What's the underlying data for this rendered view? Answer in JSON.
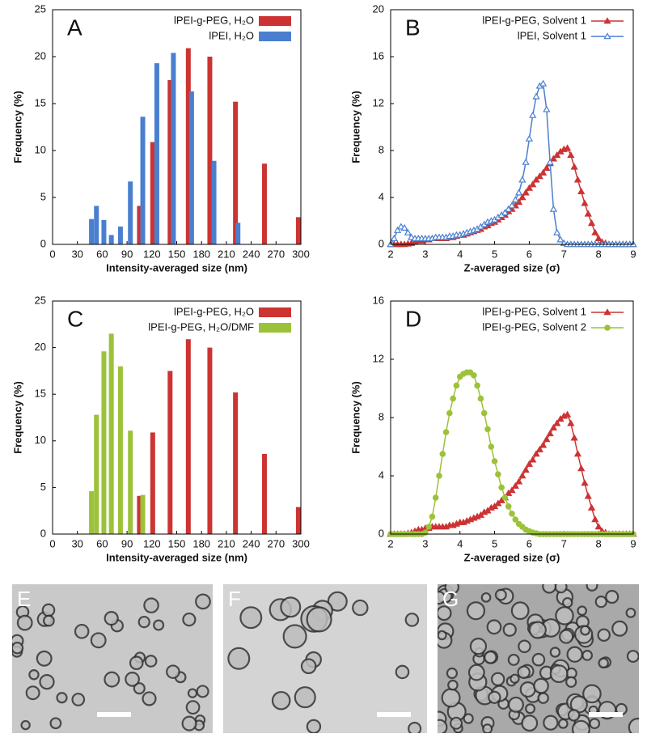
{
  "chart_data": [
    {
      "type": "bar",
      "panel": "A",
      "xlabel": "Intensity-averaged size (nm)",
      "ylabel": "Frequency (%)",
      "xlim": [
        0,
        300
      ],
      "xticks": [
        0,
        30,
        60,
        90,
        120,
        150,
        180,
        210,
        240,
        270,
        300
      ],
      "ylim": [
        0,
        25
      ],
      "yticks": [
        0,
        5,
        10,
        15,
        20,
        25
      ],
      "legend": "upper right",
      "series": [
        {
          "name": "lPEI-g-PEG, H₂O",
          "color": "#cc3333",
          "x": [
            105,
            121,
            142,
            164,
            190,
            221,
            256,
            297
          ],
          "values": [
            4.1,
            10.9,
            17.5,
            20.9,
            20.0,
            15.2,
            8.6,
            2.9
          ]
        },
        {
          "name": "lPEI, H₂O",
          "color": "#4a7fd0",
          "x": [
            47,
            53,
            62,
            71,
            82,
            94,
            109,
            126,
            146,
            168,
            195,
            224
          ],
          "values": [
            2.7,
            4.1,
            2.6,
            1.0,
            1.9,
            6.7,
            13.6,
            19.3,
            20.4,
            16.3,
            8.9,
            2.3
          ]
        }
      ]
    },
    {
      "type": "line",
      "panel": "B",
      "xlabel": "Z-averaged size (σ)",
      "ylabel": "Frequency (%)",
      "xlim": [
        2,
        9
      ],
      "xticks": [
        2,
        3,
        4,
        5,
        6,
        7,
        8,
        9
      ],
      "ylim": [
        0,
        20
      ],
      "yticks": [
        0,
        4,
        8,
        12,
        16,
        20
      ],
      "legend": "upper right",
      "x": [
        2,
        2.1,
        2.2,
        2.3,
        2.4,
        2.5,
        2.6,
        2.7,
        2.8,
        2.9,
        3,
        3.1,
        3.2,
        3.3,
        3.4,
        3.5,
        3.6,
        3.7,
        3.8,
        3.9,
        4,
        4.1,
        4.2,
        4.3,
        4.4,
        4.5,
        4.6,
        4.7,
        4.8,
        4.9,
        5,
        5.1,
        5.2,
        5.3,
        5.4,
        5.5,
        5.6,
        5.7,
        5.8,
        5.9,
        6,
        6.1,
        6.2,
        6.3,
        6.4,
        6.5,
        6.6,
        6.7,
        6.8,
        6.9,
        7,
        7.1,
        7.2,
        7.3,
        7.4,
        7.5,
        7.6,
        7.7,
        7.8,
        7.9,
        8,
        8.1,
        8.2,
        8.3,
        8.4,
        8.5,
        8.6,
        8.7,
        8.8,
        8.9,
        9
      ],
      "series": [
        {
          "name": "lPEI-g-PEG, Solvent 1",
          "color": "#cc3333",
          "marker": "filled-triangle",
          "values": [
            0,
            0,
            0,
            0,
            0,
            0.05,
            0.1,
            0.2,
            0.3,
            0.3,
            0.4,
            0.4,
            0.5,
            0.5,
            0.5,
            0.5,
            0.5,
            0.6,
            0.6,
            0.7,
            0.8,
            0.8,
            0.9,
            1.0,
            1.1,
            1.2,
            1.3,
            1.5,
            1.6,
            1.8,
            1.9,
            2.1,
            2.3,
            2.5,
            2.8,
            3.0,
            3.3,
            3.6,
            4.0,
            4.4,
            4.8,
            5.1,
            5.5,
            5.8,
            6.1,
            6.5,
            6.9,
            7.3,
            7.6,
            7.9,
            8.1,
            8.2,
            7.6,
            6.6,
            5.5,
            4.5,
            3.5,
            2.6,
            1.8,
            1.0,
            0.5,
            0.2,
            0.1,
            0,
            0,
            0,
            0,
            0,
            0,
            0,
            0
          ]
        },
        {
          "name": "lPEI, Solvent 1",
          "color": "#4a7fd0",
          "marker": "open-triangle",
          "values": [
            0,
            0.5,
            1.2,
            1.5,
            1.4,
            1.0,
            0.6,
            0.5,
            0.5,
            0.5,
            0.5,
            0.5,
            0.5,
            0.6,
            0.6,
            0.6,
            0.6,
            0.7,
            0.7,
            0.8,
            0.8,
            0.9,
            1.0,
            1.1,
            1.2,
            1.3,
            1.5,
            1.7,
            1.9,
            2.0,
            2.1,
            2.3,
            2.5,
            2.7,
            3.0,
            3.3,
            3.8,
            4.4,
            5.5,
            7.0,
            9.0,
            11.0,
            12.6,
            13.5,
            13.7,
            11.5,
            7.0,
            3.0,
            1.0,
            0.4,
            0.1,
            0,
            0,
            0,
            0,
            0,
            0,
            0,
            0,
            0,
            0,
            0,
            0,
            0,
            0,
            0,
            0,
            0,
            0,
            0,
            0
          ]
        }
      ]
    },
    {
      "type": "bar",
      "panel": "C",
      "xlabel": "Intensity-averaged size (nm)",
      "ylabel": "Frequency (%)",
      "xlim": [
        0,
        300
      ],
      "xticks": [
        0,
        30,
        60,
        90,
        120,
        150,
        180,
        210,
        240,
        270,
        300
      ],
      "ylim": [
        0,
        25
      ],
      "yticks": [
        0,
        5,
        10,
        15,
        20,
        25
      ],
      "legend": "upper right",
      "series": [
        {
          "name": "lPEI-g-PEG, H₂O",
          "color": "#cc3333",
          "x": [
            105,
            121,
            142,
            164,
            190,
            221,
            256,
            297
          ],
          "values": [
            4.1,
            10.9,
            17.5,
            20.9,
            20.0,
            15.2,
            8.6,
            2.9
          ]
        },
        {
          "name": "lPEI-g-PEG, H₂O/DMF",
          "color": "#9cc23a",
          "x": [
            47,
            53,
            62,
            71,
            82,
            94,
            109
          ],
          "values": [
            4.6,
            12.8,
            19.6,
            21.5,
            18.0,
            11.1,
            4.2
          ]
        }
      ]
    },
    {
      "type": "line",
      "panel": "D",
      "xlabel": "Z-averaged size (σ)",
      "ylabel": "Frequency (%)",
      "xlim": [
        2,
        9
      ],
      "xticks": [
        2,
        3,
        4,
        5,
        6,
        7,
        8,
        9
      ],
      "ylim": [
        0,
        16
      ],
      "yticks": [
        0,
        4,
        8,
        12,
        16
      ],
      "legend": "upper right",
      "x": [
        2,
        2.1,
        2.2,
        2.3,
        2.4,
        2.5,
        2.6,
        2.7,
        2.8,
        2.9,
        3,
        3.1,
        3.2,
        3.3,
        3.4,
        3.5,
        3.6,
        3.7,
        3.8,
        3.9,
        4,
        4.1,
        4.2,
        4.3,
        4.4,
        4.5,
        4.6,
        4.7,
        4.8,
        4.9,
        5,
        5.1,
        5.2,
        5.3,
        5.4,
        5.5,
        5.6,
        5.7,
        5.8,
        5.9,
        6,
        6.1,
        6.2,
        6.3,
        6.4,
        6.5,
        6.6,
        6.7,
        6.8,
        6.9,
        7,
        7.1,
        7.2,
        7.3,
        7.4,
        7.5,
        7.6,
        7.7,
        7.8,
        7.9,
        8,
        8.1,
        8.2,
        8.3,
        8.4,
        8.5,
        8.6,
        8.7,
        8.8,
        8.9,
        9
      ],
      "series": [
        {
          "name": "lPEI-g-PEG, Solvent 1",
          "color": "#cc3333",
          "marker": "filled-triangle",
          "values": [
            0,
            0,
            0,
            0,
            0,
            0.05,
            0.1,
            0.2,
            0.3,
            0.3,
            0.4,
            0.4,
            0.5,
            0.5,
            0.5,
            0.5,
            0.5,
            0.6,
            0.6,
            0.7,
            0.8,
            0.8,
            0.9,
            1.0,
            1.1,
            1.2,
            1.3,
            1.5,
            1.6,
            1.8,
            1.9,
            2.1,
            2.3,
            2.5,
            2.8,
            3.0,
            3.3,
            3.6,
            4.0,
            4.4,
            4.8,
            5.1,
            5.5,
            5.8,
            6.1,
            6.5,
            6.9,
            7.3,
            7.6,
            7.9,
            8.1,
            8.2,
            7.6,
            6.6,
            5.5,
            4.5,
            3.5,
            2.6,
            1.8,
            1.0,
            0.5,
            0.2,
            0.1,
            0,
            0,
            0,
            0,
            0,
            0,
            0,
            0
          ]
        },
        {
          "name": "lPEI-g-PEG, Solvent 2",
          "color": "#9cc23a",
          "marker": "filled-circle",
          "values": [
            0,
            0,
            0,
            0,
            0,
            0,
            0,
            0,
            0,
            0,
            0.1,
            0.5,
            1.2,
            2.5,
            4.0,
            5.5,
            7.0,
            8.3,
            9.3,
            10.2,
            10.8,
            11.0,
            11.1,
            11.1,
            10.9,
            10.2,
            9.3,
            8.3,
            7.2,
            6.0,
            5.0,
            4.1,
            3.2,
            2.5,
            1.9,
            1.4,
            1.0,
            0.7,
            0.5,
            0.3,
            0.2,
            0.1,
            0.05,
            0,
            0,
            0,
            0,
            0,
            0,
            0,
            0,
            0,
            0,
            0,
            0,
            0,
            0,
            0,
            0,
            0,
            0,
            0,
            0,
            0,
            0,
            0,
            0,
            0,
            0,
            0,
            0
          ]
        }
      ]
    }
  ],
  "micrographs": [
    {
      "label": "E"
    },
    {
      "label": "F"
    },
    {
      "label": "G"
    }
  ]
}
